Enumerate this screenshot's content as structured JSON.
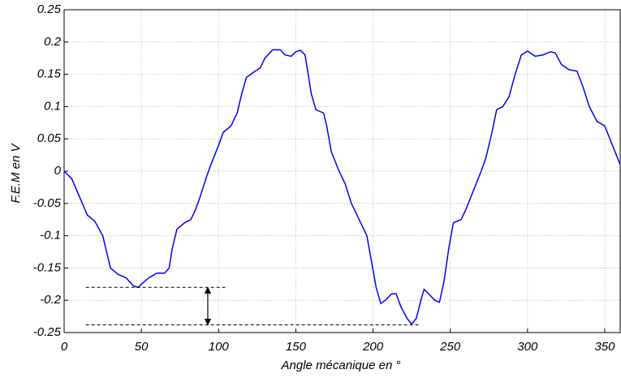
{
  "chart_data": {
    "type": "line",
    "x_label": "Angle mécanique en °",
    "y_label": "F.E.M en V",
    "x": [
      0,
      5,
      10,
      15,
      20,
      25,
      28,
      30,
      35,
      40,
      45,
      48,
      50,
      55,
      60,
      65,
      68,
      70,
      73,
      78,
      82,
      85,
      88,
      92,
      95,
      100,
      103,
      108,
      112,
      115,
      118,
      122,
      127,
      130,
      135,
      140,
      143,
      147,
      150,
      153,
      156,
      158,
      160,
      163,
      168,
      170,
      173,
      178,
      182,
      186,
      190,
      193,
      196,
      199,
      202,
      205,
      208,
      212,
      215,
      218,
      222,
      225,
      228,
      231,
      233,
      236,
      240,
      243,
      246,
      249,
      252,
      257,
      260,
      265,
      270,
      273,
      277,
      280,
      284,
      288,
      292,
      296,
      300,
      305,
      310,
      315,
      318,
      322,
      327,
      332,
      336,
      340,
      345,
      350,
      355,
      360
    ],
    "series": [
      {
        "color": "#0000ff",
        "values": [
          0,
          -0.012,
          -0.04,
          -0.068,
          -0.078,
          -0.1,
          -0.13,
          -0.15,
          -0.16,
          -0.165,
          -0.178,
          -0.18,
          -0.175,
          -0.165,
          -0.158,
          -0.158,
          -0.15,
          -0.12,
          -0.09,
          -0.08,
          -0.075,
          -0.06,
          -0.04,
          -0.01,
          0.01,
          0.04,
          0.06,
          0.07,
          0.09,
          0.12,
          0.145,
          0.152,
          0.16,
          0.175,
          0.188,
          0.188,
          0.18,
          0.178,
          0.185,
          0.187,
          0.18,
          0.15,
          0.12,
          0.095,
          0.09,
          0.07,
          0.03,
          0,
          -0.02,
          -0.05,
          -0.07,
          -0.085,
          -0.1,
          -0.14,
          -0.18,
          -0.205,
          -0.2,
          -0.19,
          -0.19,
          -0.21,
          -0.228,
          -0.237,
          -0.228,
          -0.2,
          -0.183,
          -0.19,
          -0.2,
          -0.203,
          -0.17,
          -0.12,
          -0.08,
          -0.075,
          -0.06,
          -0.03,
          0,
          0.02,
          0.06,
          0.095,
          0.1,
          0.115,
          0.15,
          0.18,
          0.186,
          0.178,
          0.18,
          0.185,
          0.183,
          0.165,
          0.157,
          0.155,
          0.13,
          0.1,
          0.077,
          0.07,
          0.04,
          0.01
        ]
      }
    ],
    "xlim": [
      0,
      360
    ],
    "xticks": [
      0,
      50,
      100,
      150,
      200,
      250,
      300,
      350
    ],
    "ylim": [
      -0.25,
      0.25
    ],
    "yticks": [
      -0.25,
      -0.2,
      -0.15,
      -0.1,
      -0.05,
      0,
      0.05,
      0.1,
      0.15,
      0.2,
      0.25
    ],
    "grid": true,
    "reference_lines": [
      {
        "y": -0.18,
        "x": [
          14,
          105
        ]
      },
      {
        "y": -0.238,
        "x": [
          14,
          230
        ]
      }
    ],
    "arrow": {
      "x": 93,
      "y": [
        -0.18,
        -0.238
      ]
    }
  }
}
